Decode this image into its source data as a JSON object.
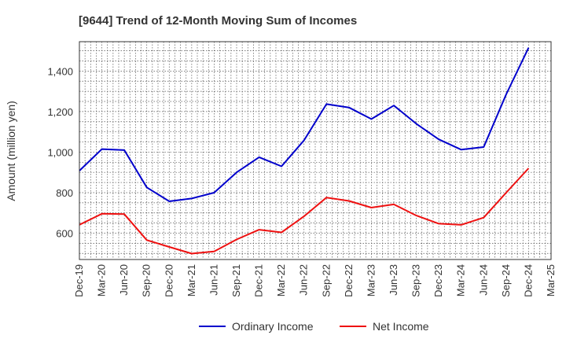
{
  "chart_data": {
    "type": "line",
    "title": "[9644]  Trend of 12-Month Moving Sum of Incomes",
    "xlabel": "",
    "ylabel": "Amount (million yen)",
    "ylim": [
      470,
      1545
    ],
    "yticks": [
      600,
      800,
      1000,
      1200,
      1400
    ],
    "ytick_labels": [
      "600",
      "800",
      "1,000",
      "1,200",
      "1,400"
    ],
    "categories": [
      "Dec-19",
      "Mar-20",
      "Jun-20",
      "Sep-20",
      "Dec-20",
      "Mar-21",
      "Jun-21",
      "Sep-21",
      "Dec-21",
      "Mar-22",
      "Jun-22",
      "Sep-22",
      "Dec-22",
      "Mar-23",
      "Jun-23",
      "Sep-23",
      "Dec-23",
      "Mar-24",
      "Jun-24",
      "Sep-24",
      "Dec-24",
      "Mar-25"
    ],
    "series": [
      {
        "name": "Ordinary Income",
        "color": "#0000cc",
        "values": [
          908,
          1015,
          1010,
          826,
          757,
          771,
          800,
          900,
          975,
          930,
          1058,
          1237,
          1220,
          1163,
          1230,
          1140,
          1063,
          1012,
          1025,
          1285,
          1515,
          null
        ]
      },
      {
        "name": "Net Income",
        "color": "#ee1111",
        "values": [
          641,
          696,
          694,
          566,
          532,
          499,
          510,
          569,
          617,
          604,
          683,
          776,
          759,
          726,
          742,
          687,
          647,
          641,
          677,
          800,
          920,
          null
        ]
      }
    ],
    "grid": true,
    "legend": "bottom-center"
  }
}
